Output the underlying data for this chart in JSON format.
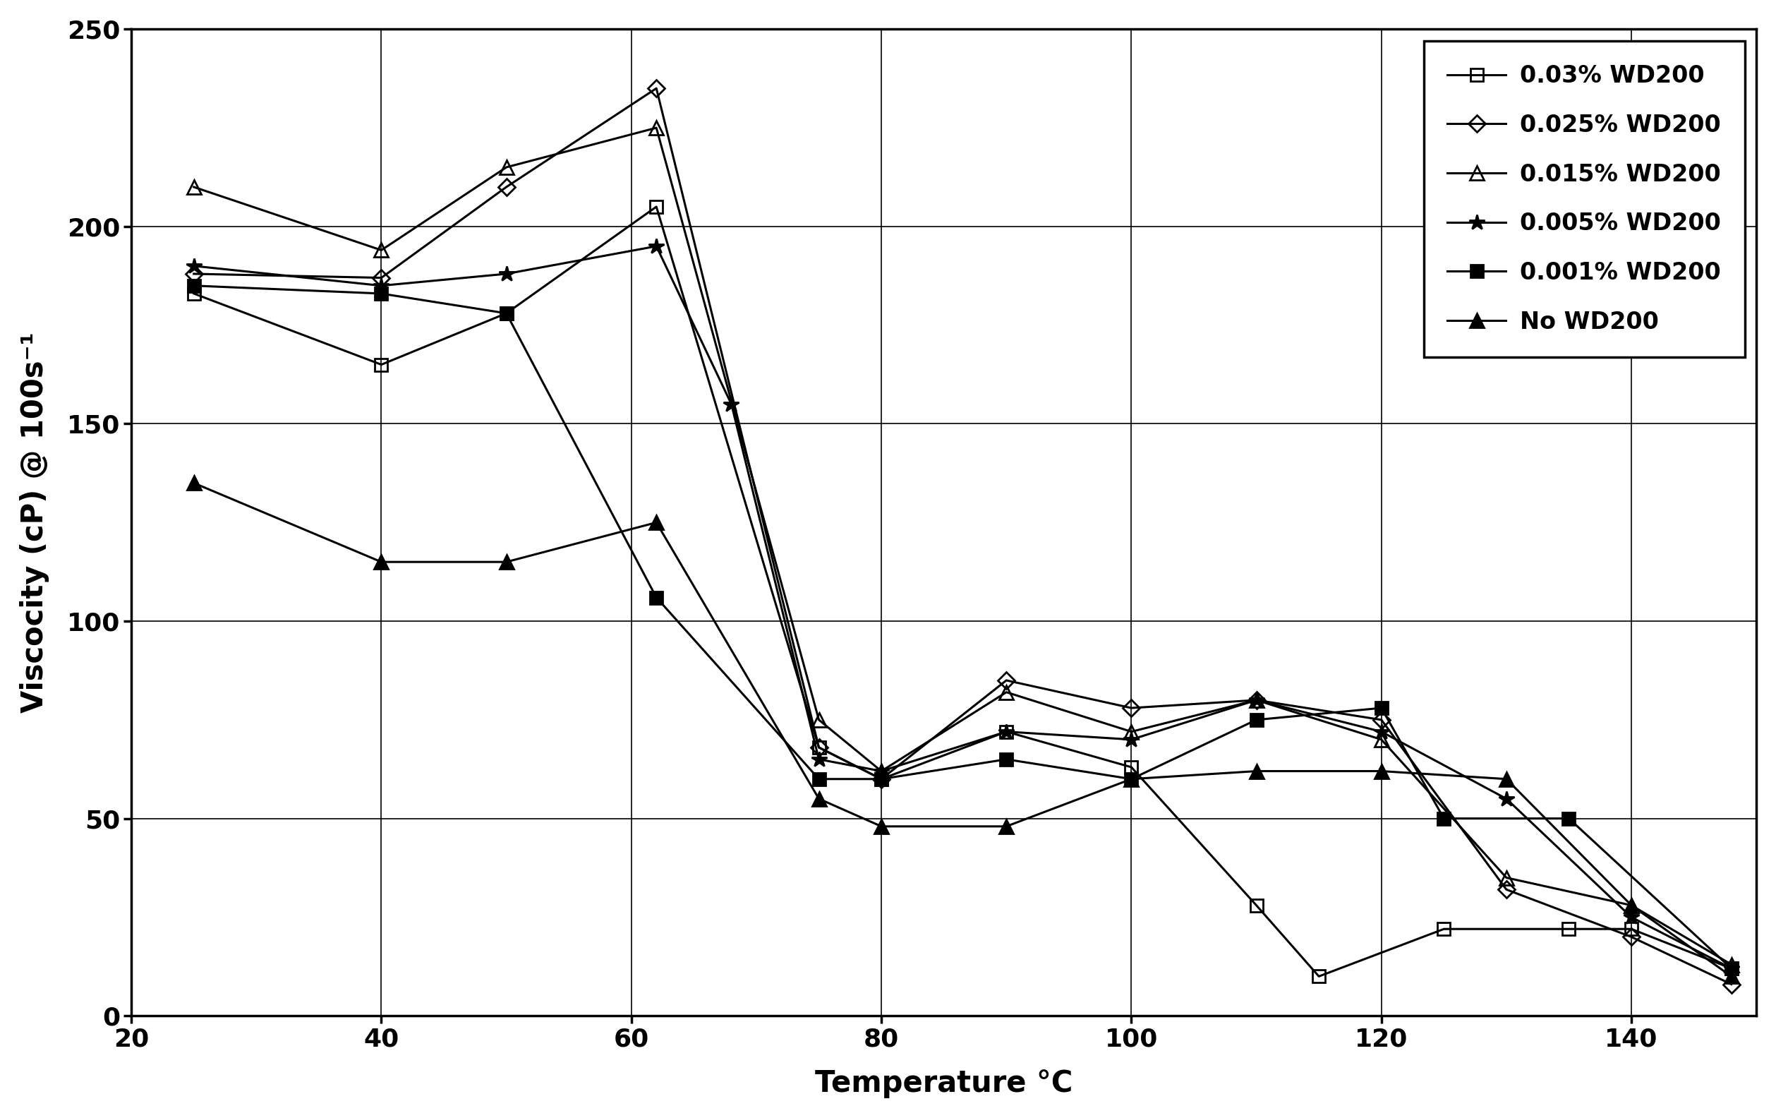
{
  "xlabel": "Temperature °C",
  "ylabel": "Viscocity (cP) @ 100s⁻¹",
  "xlim": [
    20,
    150
  ],
  "ylim": [
    0,
    250
  ],
  "xticks": [
    20,
    40,
    60,
    80,
    100,
    120,
    140
  ],
  "yticks": [
    0,
    50,
    100,
    150,
    200,
    250
  ],
  "background_color": "#ffffff",
  "series": [
    {
      "label": "0.03% WD200",
      "marker": "s",
      "fillstyle": "none",
      "color": "#000000",
      "linewidth": 2.2,
      "markersize": 13,
      "markeredgewidth": 2.0,
      "x": [
        25,
        40,
        50,
        62,
        75,
        80,
        90,
        100,
        110,
        115,
        125,
        135,
        140,
        148
      ],
      "y": [
        183,
        165,
        178,
        205,
        68,
        60,
        72,
        63,
        28,
        10,
        22,
        22,
        22,
        12
      ]
    },
    {
      "label": "0.025% WD200",
      "marker": "D",
      "fillstyle": "none",
      "color": "#000000",
      "linewidth": 2.2,
      "markersize": 12,
      "markeredgewidth": 2.0,
      "x": [
        25,
        40,
        50,
        62,
        75,
        80,
        90,
        100,
        110,
        120,
        130,
        140,
        148
      ],
      "y": [
        188,
        187,
        210,
        235,
        68,
        60,
        85,
        78,
        80,
        75,
        32,
        20,
        8
      ]
    },
    {
      "label": "0.015% WD200",
      "marker": "^",
      "fillstyle": "none",
      "color": "#000000",
      "linewidth": 2.2,
      "markersize": 14,
      "markeredgewidth": 2.0,
      "x": [
        25,
        40,
        50,
        62,
        75,
        80,
        90,
        100,
        110,
        120,
        130,
        140,
        148
      ],
      "y": [
        210,
        194,
        215,
        225,
        75,
        62,
        82,
        72,
        80,
        70,
        35,
        28,
        13
      ]
    },
    {
      "label": "0.005% WD200",
      "marker": "*",
      "fillstyle": "full",
      "color": "#000000",
      "linewidth": 2.2,
      "markersize": 16,
      "markeredgewidth": 2.0,
      "x": [
        25,
        40,
        50,
        62,
        68,
        75,
        80,
        90,
        100,
        110,
        120,
        130,
        140,
        148
      ],
      "y": [
        190,
        185,
        188,
        195,
        155,
        65,
        62,
        72,
        70,
        80,
        72,
        55,
        25,
        12
      ]
    },
    {
      "label": "0.001% WD200",
      "marker": "s",
      "fillstyle": "full",
      "color": "#000000",
      "linewidth": 2.2,
      "markersize": 13,
      "markeredgewidth": 2.0,
      "x": [
        25,
        40,
        50,
        62,
        75,
        80,
        90,
        100,
        110,
        120,
        125,
        135,
        148
      ],
      "y": [
        185,
        183,
        178,
        106,
        60,
        60,
        65,
        60,
        75,
        78,
        50,
        50,
        12
      ]
    },
    {
      "label": "No WD200",
      "marker": "^",
      "fillstyle": "full",
      "color": "#000000",
      "linewidth": 2.2,
      "markersize": 14,
      "markeredgewidth": 2.0,
      "x": [
        25,
        40,
        50,
        62,
        75,
        80,
        90,
        100,
        110,
        120,
        130,
        140,
        148
      ],
      "y": [
        135,
        115,
        115,
        125,
        55,
        48,
        48,
        60,
        62,
        62,
        60,
        28,
        10
      ]
    }
  ]
}
